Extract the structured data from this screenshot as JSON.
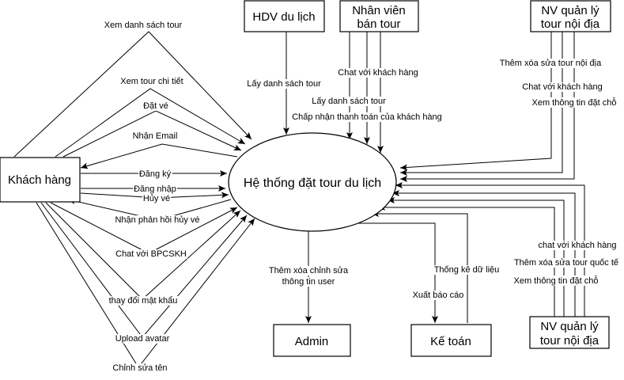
{
  "center": "Hệ thống đặt tour du lịch",
  "entities": {
    "khach_hang": "Khách hàng",
    "hdv": "HDV du lịch",
    "nhan_vien_1": "Nhân viên",
    "nhan_vien_2": "bán tour",
    "nvql_top_1": "NV quản lý",
    "nvql_top_2": "tour nội địa",
    "nvql_bot_1": "NV quản lý",
    "nvql_bot_2": "tour nội địa",
    "admin": "Admin",
    "ke_toan": "Kế toán"
  },
  "labels": {
    "xem_ds_tour": "Xem danh sách tour",
    "xem_tour_ct": "Xem tour chi tiết",
    "dat_ve": "Đặt vé",
    "nhan_email": "Nhận Email",
    "dang_ky": "Đăng ký",
    "dang_nhap": "Đăng nhập",
    "huy_ve": "Hủy vé",
    "nhan_phan_hoi": "Nhận phản hồi hủy vé",
    "chat_bpcskh": "Chat với BPCSKH",
    "doi_mk": "thay đổi mật khẩu",
    "upload_avatar": "Upload avatar",
    "chinh_sua_ten": "Chỉnh sửa tên",
    "hdv_lay_ds": "Lấy danh sách tour",
    "nv_chat": "Chat với khách hàng",
    "nv_lay_ds": "Lấy danh sách tour",
    "nv_chap_nhan": "Chấp nhận thanh toán của khách hàng",
    "top_them_xoa": "Thêm xóa sửa tour nội địa",
    "top_chat": "Chat với khách hàng",
    "top_xem": "Xem thông tin đặt chỗ",
    "bot_chat": "chat với khách hàng",
    "bot_them_xoa": "Thêm xóa sửa tour quốc tế",
    "bot_xem": "Xem thông tin đặt chỗ",
    "admin_1": "Thêm xóa chỉnh sửa",
    "admin_2": "thông tin user",
    "kt_thong_ke": "Thống kê dữ liệu",
    "kt_xuat": "Xuất báo cáo"
  }
}
